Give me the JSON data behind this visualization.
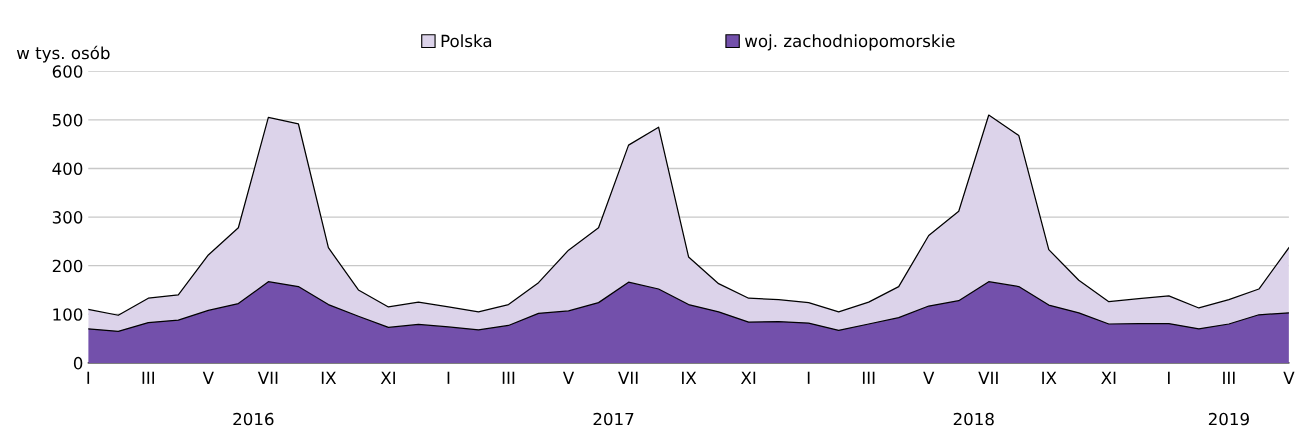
{
  "chart_data": {
    "type": "area",
    "ylabel": "w tys. osób",
    "categories": [
      "I",
      null,
      "III",
      null,
      "V",
      null,
      "VII",
      null,
      "IX",
      null,
      "XI",
      null,
      "I",
      null,
      "III",
      null,
      "V",
      null,
      "VII",
      null,
      "IX",
      null,
      "XI",
      null,
      "I",
      null,
      "III",
      null,
      "V",
      null,
      "VII",
      null,
      "IX",
      null,
      "XI",
      null,
      "I",
      null,
      "III",
      null,
      "V"
    ],
    "series": [
      {
        "name": "Polska",
        "color": "#dcd3ea",
        "values": [
          110,
          98,
          133,
          140,
          222,
          278,
          505,
          492,
          237,
          150,
          115,
          125,
          115,
          105,
          120,
          165,
          232,
          278,
          448,
          485,
          218,
          163,
          133,
          130,
          124,
          105,
          125,
          157,
          262,
          312,
          510,
          468,
          233,
          170,
          126,
          132,
          138,
          113,
          130,
          152,
          237
        ]
      },
      {
        "name": "woj. zachodniopomorskie",
        "color": "#7350ab",
        "values": [
          70,
          65,
          83,
          88,
          108,
          122,
          167,
          157,
          120,
          96,
          73,
          79,
          74,
          68,
          77,
          102,
          107,
          124,
          166,
          152,
          120,
          105,
          84,
          85,
          82,
          67,
          80,
          93,
          117,
          128,
          167,
          157,
          119,
          103,
          80,
          81,
          81,
          70,
          80,
          99,
          103
        ]
      }
    ],
    "ylim": [
      0,
      600
    ],
    "yticks": [
      0,
      100,
      200,
      300,
      400,
      500,
      600
    ],
    "grid": "y",
    "legend": "top",
    "annotations": [
      "2016",
      "2017",
      "2018",
      "2019"
    ]
  }
}
